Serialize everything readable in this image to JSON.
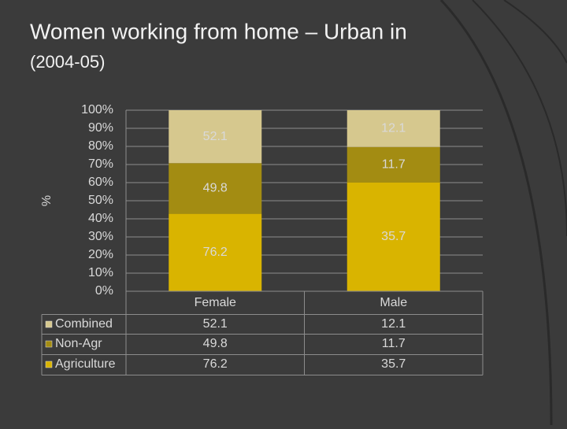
{
  "chart_data": {
    "type": "bar",
    "stacked": "percent",
    "title": "Women working from home – Urban in",
    "subtitle": "(2004-05)",
    "y_label": "%",
    "categories": [
      "Female",
      "Male"
    ],
    "series": [
      {
        "name": "Agriculture",
        "color": "#d9b400",
        "values": [
          76.2,
          35.7
        ]
      },
      {
        "name": "Non-Agr",
        "color": "#a38c12",
        "values": [
          49.8,
          11.7
        ]
      },
      {
        "name": "Combined",
        "color": "#d6c88e",
        "values": [
          52.1,
          12.1
        ]
      }
    ],
    "ylim": [
      0,
      100
    ],
    "yticks": [
      {
        "value": 0,
        "label": "0%"
      },
      {
        "value": 10,
        "label": "10%"
      },
      {
        "value": 20,
        "label": "20%"
      },
      {
        "value": 30,
        "label": "30%"
      },
      {
        "value": 40,
        "label": "40%"
      },
      {
        "value": 50,
        "label": "50%"
      },
      {
        "value": 60,
        "label": "60%"
      },
      {
        "value": 70,
        "label": "70%"
      },
      {
        "value": 80,
        "label": "80%"
      },
      {
        "value": 90,
        "label": "90%"
      },
      {
        "value": 100,
        "label": "100%"
      }
    ],
    "grid": true,
    "data_table": true
  }
}
